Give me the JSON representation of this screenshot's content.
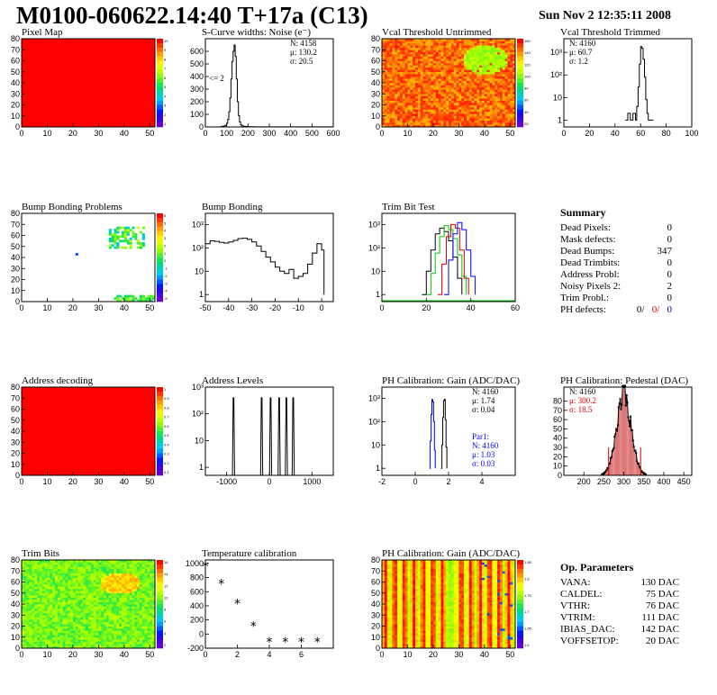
{
  "header": {
    "title": "M0100-060622.14:40 T+17a (C13)",
    "date": "Sun Nov  2 12:35:11 2008"
  },
  "colors": {
    "heat_red": "#ff0000",
    "green_trace": "#00c800",
    "red_trace": "#e00000",
    "blue_trace": "#0000ff",
    "black_trace": "#000000"
  },
  "summary": {
    "title": "Summary",
    "rows": [
      {
        "label": "Dead Pixels:",
        "value": "0"
      },
      {
        "label": "Mask defects:",
        "value": "0"
      },
      {
        "label": "Dead Bumps:",
        "value": "347"
      },
      {
        "label": "Dead Trimbits:",
        "value": "0"
      },
      {
        "label": "Address Probl:",
        "value": "0"
      },
      {
        "label": "Noisy Pixels 2:",
        "value": "2"
      },
      {
        "label": "Trim Probl.:",
        "value": "0"
      }
    ],
    "ph_defects": {
      "label": "PH defects:",
      "black": "0/",
      "red": "0/",
      "blue": "0"
    }
  },
  "op_parameters": {
    "title": "Op. Parameters",
    "rows": [
      {
        "label": "VANA:",
        "value": "130 DAC"
      },
      {
        "label": "CALDEL:",
        "value": "75 DAC"
      },
      {
        "label": "VTHR:",
        "value": "76 DAC"
      },
      {
        "label": "VTRIM:",
        "value": "111 DAC"
      },
      {
        "label": "IBIAS_DAC:",
        "value": "142 DAC"
      },
      {
        "label": "VOFFSETOP:",
        "value": "20 DAC"
      }
    ]
  },
  "chart_data": [
    {
      "id": "pixel-map",
      "type": "heatmap",
      "title": "Pixel Map",
      "xlim": [
        0,
        52
      ],
      "ylim": [
        0,
        80
      ],
      "xticks": [
        0,
        10,
        20,
        30,
        40,
        50
      ],
      "yticks": [
        0,
        10,
        20,
        30,
        40,
        50,
        60,
        70,
        80
      ],
      "palette_ticks": [
        "10",
        "9",
        "8",
        "7",
        "6",
        "5",
        "4",
        "3",
        "2",
        "1"
      ],
      "pattern": "uniform",
      "uniform_value": 10
    },
    {
      "id": "scurve-noise",
      "type": "line",
      "title": "S-Curve widths: Noise (e⁻)",
      "xlim": [
        0,
        600
      ],
      "ylim": [
        0,
        700
      ],
      "xticks": [
        0,
        100,
        200,
        300,
        400,
        500,
        600
      ],
      "yticks": [
        0,
        100,
        200,
        300,
        400,
        500,
        600
      ],
      "stats": [
        "N: 4158",
        "μ: 130.2",
        "σ: 20.5"
      ],
      "annotation": "<= 2",
      "series": [
        {
          "color": "#000000",
          "x": [
            0,
            60,
            70,
            80,
            90,
            100,
            105,
            110,
            115,
            120,
            125,
            130,
            135,
            140,
            145,
            150,
            155,
            160,
            165,
            170,
            180,
            200,
            230,
            600
          ],
          "y": [
            0,
            0,
            2,
            5,
            12,
            30,
            60,
            120,
            230,
            380,
            520,
            600,
            650,
            560,
            380,
            200,
            90,
            40,
            18,
            8,
            4,
            2,
            1,
            0
          ]
        }
      ]
    },
    {
      "id": "vcal-untrimmed",
      "type": "heatmap",
      "title": "Vcal Threshold Untrimmed",
      "xlim": [
        0,
        52
      ],
      "ylim": [
        0,
        80
      ],
      "xticks": [
        0,
        10,
        20,
        30,
        40,
        50
      ],
      "yticks": [
        0,
        10,
        20,
        30,
        40,
        50,
        60,
        70,
        80
      ],
      "palette_ticks": [
        "160",
        "140",
        "120",
        "100",
        "80",
        "60",
        "40",
        "20"
      ],
      "pattern": "noisy-warm-blob"
    },
    {
      "id": "vcal-trimmed",
      "type": "line",
      "title": "Vcal Threshold Trimmed",
      "scale": "log",
      "xlim": [
        0,
        100
      ],
      "ylim": [
        0.5,
        4000
      ],
      "xticks": [
        0,
        20,
        40,
        60,
        80,
        100
      ],
      "yticks": [
        1,
        10,
        100,
        1000
      ],
      "stats": [
        "N: 4160",
        "μ: 60.7",
        "σ: 1.2"
      ],
      "series": [
        {
          "color": "#000000",
          "x": [
            48,
            50,
            52,
            54,
            56,
            57,
            58,
            59,
            60,
            61,
            62,
            63,
            64,
            65,
            66,
            68,
            70
          ],
          "y": [
            1,
            2,
            1,
            2,
            1,
            4,
            30,
            300,
            1800,
            1500,
            500,
            80,
            8,
            2,
            1,
            1,
            1
          ]
        }
      ]
    },
    {
      "id": "bump-bonding-problems",
      "type": "heatmap",
      "title": "Bump Bonding Problems",
      "xlim": [
        0,
        52
      ],
      "ylim": [
        0,
        80
      ],
      "xticks": [
        0,
        10,
        20,
        30,
        40,
        50
      ],
      "yticks": [
        0,
        10,
        20,
        30,
        40,
        50,
        60,
        70,
        80
      ],
      "palette_ticks": [
        "6",
        "5",
        "4",
        "3",
        "2",
        "1",
        "0",
        "-1",
        "-2",
        "-3",
        "-4",
        "-5"
      ],
      "pattern": "sparse-cluster"
    },
    {
      "id": "bump-bonding",
      "type": "line",
      "title": "Bump Bonding",
      "scale": "log",
      "xlim": [
        -50,
        5
      ],
      "ylim": [
        0.5,
        3000
      ],
      "xticks": [
        -50,
        -40,
        -30,
        -20,
        -10,
        0
      ],
      "yticks": [
        1,
        10,
        100,
        1000
      ],
      "series": [
        {
          "color": "#000000",
          "x": [
            -50,
            -48,
            -46,
            -44,
            -42,
            -40,
            -38,
            -36,
            -34,
            -32,
            -30,
            -28,
            -26,
            -24,
            -22,
            -20,
            -18,
            -16,
            -14,
            -12,
            -10,
            -8,
            -6,
            -4,
            -2,
            0,
            1
          ],
          "y": [
            150,
            200,
            190,
            170,
            160,
            180,
            210,
            250,
            260,
            230,
            180,
            120,
            70,
            40,
            25,
            15,
            10,
            8,
            12,
            5,
            6,
            8,
            20,
            60,
            150,
            80,
            1
          ]
        }
      ]
    },
    {
      "id": "trim-bit-test",
      "type": "line",
      "title": "Trim Bit Test",
      "scale": "log",
      "xlim": [
        0,
        60
      ],
      "ylim": [
        0.5,
        3000
      ],
      "xticks": [
        0,
        20,
        40,
        60
      ],
      "yticks": [
        1,
        10,
        100,
        1000
      ],
      "series": [
        {
          "color": "#000000",
          "x": [
            18,
            20,
            22,
            24,
            26,
            28,
            30,
            32,
            34,
            36
          ],
          "y": [
            1,
            10,
            80,
            400,
            700,
            500,
            200,
            40,
            5,
            1
          ]
        },
        {
          "color": "#00c800",
          "x": [
            20,
            22,
            24,
            26,
            28,
            30,
            32,
            34,
            36,
            38
          ],
          "y": [
            1,
            8,
            60,
            300,
            900,
            600,
            250,
            50,
            6,
            1
          ]
        },
        {
          "color": "#e00000",
          "x": [
            25,
            27,
            29,
            31,
            33,
            35,
            37,
            39
          ],
          "y": [
            1,
            20,
            300,
            1000,
            700,
            80,
            5,
            1
          ]
        },
        {
          "color": "#0000ff",
          "x": [
            28,
            30,
            32,
            34,
            36,
            38,
            40,
            42
          ],
          "y": [
            1,
            30,
            400,
            1200,
            600,
            80,
            6,
            1
          ]
        }
      ]
    },
    {
      "id": "address-decoding",
      "type": "heatmap",
      "title": "Address decoding",
      "xlim": [
        0,
        52
      ],
      "ylim": [
        0,
        80
      ],
      "xticks": [
        0,
        10,
        20,
        30,
        40,
        50
      ],
      "yticks": [
        0,
        10,
        20,
        30,
        40,
        50,
        60,
        70,
        80
      ],
      "palette_ticks": [
        "1",
        "0.9",
        "0.8",
        "0.7",
        "0.6",
        "0.5",
        "0.4",
        "0.3",
        "0.2",
        "0.1"
      ],
      "pattern": "uniform",
      "uniform_value": 1
    },
    {
      "id": "address-levels",
      "type": "line",
      "title": "Address Levels",
      "scale": "log",
      "xlim": [
        -1500,
        1500
      ],
      "ylim": [
        0.5,
        1000
      ],
      "xticks": [
        -1000,
        0,
        1000
      ],
      "yticks": [
        1,
        10,
        100,
        1000
      ],
      "series": [
        {
          "color": "#000000",
          "peaks": [
            -840,
            -180,
            30,
            230,
            400,
            560
          ],
          "peak_height": 400
        }
      ]
    },
    {
      "id": "ph-gain",
      "type": "line",
      "title": "PH Calibration: Gain (ADC/DAC)",
      "scale": "log",
      "xlim": [
        -2,
        6
      ],
      "ylim": [
        0.5,
        3000
      ],
      "xticks": [
        -2,
        0,
        2,
        4
      ],
      "yticks": [
        1,
        10,
        100,
        1000
      ],
      "stats": [
        "N: 4160",
        "μ: 1.74",
        "σ: 0.04"
      ],
      "stats2": [
        "Par1:",
        "N: 4160",
        "μ: 1.03",
        "σ: 0.03"
      ],
      "series": [
        {
          "color": "#000000",
          "x": [
            1.55,
            1.6,
            1.65,
            1.7,
            1.75,
            1.8,
            1.85,
            1.9
          ],
          "y": [
            1,
            10,
            150,
            800,
            900,
            120,
            8,
            1
          ]
        },
        {
          "color": "#0000ff",
          "x": [
            0.85,
            0.9,
            0.95,
            1.0,
            1.05,
            1.1,
            1.15,
            1.2
          ],
          "y": [
            1,
            15,
            200,
            900,
            700,
            100,
            6,
            1
          ]
        }
      ]
    },
    {
      "id": "ph-pedestal",
      "type": "line",
      "title": "PH Calibration: Pedestal (DAC)",
      "xlim": [
        150,
        470
      ],
      "ylim": [
        0,
        95
      ],
      "xticks": [
        200,
        250,
        300,
        350,
        400,
        450
      ],
      "yticks": [
        0,
        10,
        20,
        30,
        40,
        50,
        60,
        70,
        80
      ],
      "stats": [
        "N: 4160"
      ],
      "stats_red": [
        "μ: 300.2",
        "σ: 18.5"
      ],
      "series": [
        {
          "color": "#000000",
          "gauss": {
            "mean": 300.2,
            "sigma": 18.5,
            "peak": 85
          },
          "range": [
            245,
            355
          ]
        }
      ]
    },
    {
      "id": "trim-bits",
      "type": "heatmap",
      "title": "Trim Bits",
      "xlim": [
        0,
        52
      ],
      "ylim": [
        0,
        80
      ],
      "xticks": [
        0,
        10,
        20,
        30,
        40,
        50
      ],
      "yticks": [
        0,
        10,
        20,
        30,
        40,
        50,
        60,
        70,
        80
      ],
      "palette_ticks": [
        "16",
        "14",
        "12",
        "10",
        "8",
        "6",
        "4",
        "2"
      ],
      "pattern": "noisy-green"
    },
    {
      "id": "temperature-calibration",
      "type": "scatter",
      "title": "Temperature calibration",
      "xlim": [
        0,
        8
      ],
      "ylim": [
        -200,
        1050
      ],
      "xticks": [
        0,
        2,
        4,
        6
      ],
      "yticks": [
        -200,
        0,
        200,
        400,
        600,
        800,
        1000
      ],
      "series": [
        {
          "color": "#000000",
          "x": [
            0,
            1,
            2,
            3,
            4,
            5,
            6,
            7
          ],
          "y": [
            960,
            710,
            430,
            110,
            -110,
            -110,
            -110,
            -110
          ]
        }
      ]
    },
    {
      "id": "ph-gain-map",
      "type": "heatmap",
      "title": "PH Calibration: Gain (ADC/DAC)",
      "xlim": [
        0,
        52
      ],
      "ylim": [
        0,
        80
      ],
      "xticks": [
        0,
        10,
        20,
        30,
        40,
        50
      ],
      "yticks": [
        0,
        10,
        20,
        30,
        40,
        50,
        60,
        70,
        80
      ],
      "palette_ticks": [
        "1.85",
        "1.8",
        "1.75",
        "1.7",
        "1.65",
        "1.6"
      ],
      "pattern": "column-stripes"
    }
  ]
}
